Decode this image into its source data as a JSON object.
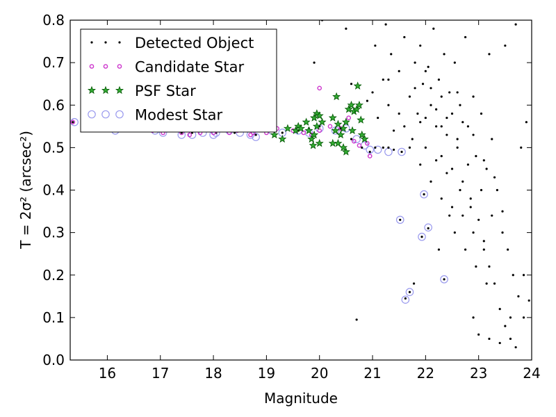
{
  "chart_data": {
    "type": "scatter",
    "xlabel": "Magnitude",
    "ylabel": "T = 2σ² (arcsec²)",
    "xlim": [
      15.3,
      24.0
    ],
    "ylim": [
      0.0,
      0.8
    ],
    "xticks": [
      "16",
      "17",
      "18",
      "19",
      "20",
      "21",
      "22",
      "23",
      "24"
    ],
    "yticks": [
      "0.0",
      "0.1",
      "0.2",
      "0.3",
      "0.4",
      "0.5",
      "0.6",
      "0.7",
      "0.8"
    ],
    "grid": false,
    "legend_position": "top-left",
    "series": [
      {
        "name": "Detected Object",
        "marker": "dot",
        "color": "#000000",
        "points": [
          [
            15.35,
            0.56
          ],
          [
            15.6,
            0.55
          ],
          [
            16.2,
            0.545
          ],
          [
            16.9,
            0.54
          ],
          [
            17.1,
            0.54
          ],
          [
            17.4,
            0.535
          ],
          [
            17.6,
            0.535
          ],
          [
            18.05,
            0.535
          ],
          [
            18.4,
            0.535
          ],
          [
            18.8,
            0.53
          ],
          [
            19.0,
            0.54
          ],
          [
            19.3,
            0.535
          ],
          [
            19.6,
            0.54
          ],
          [
            19.8,
            0.545
          ],
          [
            20.0,
            0.55
          ],
          [
            20.4,
            0.545
          ],
          [
            20.6,
            0.52
          ],
          [
            20.8,
            0.5
          ],
          [
            20.95,
            0.49
          ],
          [
            21.05,
            0.5
          ],
          [
            21.2,
            0.5
          ],
          [
            21.3,
            0.5
          ],
          [
            21.4,
            0.495
          ],
          [
            21.55,
            0.49
          ],
          [
            21.52,
            0.33
          ],
          [
            21.62,
            0.145
          ],
          [
            21.7,
            0.16
          ],
          [
            21.78,
            0.18
          ],
          [
            21.93,
            0.29
          ],
          [
            21.97,
            0.39
          ],
          [
            22.05,
            0.31
          ],
          [
            22.35,
            0.19
          ],
          [
            20.7,
            0.095
          ],
          [
            22.25,
            0.26
          ],
          [
            20.9,
            0.61
          ],
          [
            21.0,
            0.63
          ],
          [
            21.1,
            0.57
          ],
          [
            21.2,
            0.66
          ],
          [
            21.3,
            0.6
          ],
          [
            21.35,
            0.72
          ],
          [
            21.4,
            0.54
          ],
          [
            21.5,
            0.68
          ],
          [
            21.6,
            0.76
          ],
          [
            21.7,
            0.62
          ],
          [
            21.75,
            0.52
          ],
          [
            21.8,
            0.7
          ],
          [
            21.85,
            0.58
          ],
          [
            21.9,
            0.74
          ],
          [
            21.95,
            0.65
          ],
          [
            22.0,
            0.5
          ],
          [
            22.05,
            0.69
          ],
          [
            22.1,
            0.6
          ],
          [
            22.15,
            0.78
          ],
          [
            22.2,
            0.55
          ],
          [
            22.25,
            0.66
          ],
          [
            22.3,
            0.48
          ],
          [
            22.35,
            0.72
          ],
          [
            22.4,
            0.57
          ],
          [
            22.45,
            0.63
          ],
          [
            22.5,
            0.45
          ],
          [
            22.55,
            0.7
          ],
          [
            22.6,
            0.52
          ],
          [
            22.65,
            0.6
          ],
          [
            22.7,
            0.42
          ],
          [
            22.75,
            0.76
          ],
          [
            22.8,
            0.55
          ],
          [
            22.85,
            0.38
          ],
          [
            22.9,
            0.62
          ],
          [
            22.95,
            0.48
          ],
          [
            23.0,
            0.33
          ],
          [
            23.05,
            0.58
          ],
          [
            23.1,
            0.28
          ],
          [
            23.15,
            0.45
          ],
          [
            23.2,
            0.22
          ],
          [
            23.25,
            0.52
          ],
          [
            23.3,
            0.18
          ],
          [
            23.35,
            0.4
          ],
          [
            23.4,
            0.12
          ],
          [
            23.45,
            0.35
          ],
          [
            23.5,
            0.08
          ],
          [
            23.55,
            0.26
          ],
          [
            23.6,
            0.05
          ],
          [
            23.65,
            0.2
          ],
          [
            23.7,
            0.03
          ],
          [
            23.75,
            0.15
          ],
          [
            23.8,
            0.5
          ],
          [
            23.85,
            0.1
          ],
          [
            23.9,
            0.56
          ],
          [
            23.95,
            0.14
          ],
          [
            23.0,
            0.06
          ],
          [
            23.2,
            0.05
          ],
          [
            23.4,
            0.04
          ],
          [
            23.6,
            0.1
          ],
          [
            22.9,
            0.1
          ],
          [
            22.0,
            0.57
          ],
          [
            22.1,
            0.64
          ],
          [
            22.2,
            0.59
          ],
          [
            22.3,
            0.62
          ],
          [
            22.4,
            0.53
          ],
          [
            22.5,
            0.58
          ],
          [
            22.6,
            0.5
          ],
          [
            22.7,
            0.56
          ],
          [
            22.2,
            0.47
          ],
          [
            22.4,
            0.44
          ],
          [
            21.6,
            0.55
          ],
          [
            21.8,
            0.64
          ],
          [
            21.9,
            0.56
          ],
          [
            22.0,
            0.68
          ],
          [
            22.3,
            0.55
          ],
          [
            22.6,
            0.63
          ],
          [
            22.8,
            0.46
          ],
          [
            22.9,
            0.53
          ],
          [
            23.1,
            0.47
          ],
          [
            23.3,
            0.43
          ],
          [
            21.3,
            0.66
          ],
          [
            21.5,
            0.58
          ],
          [
            21.7,
            0.5
          ],
          [
            21.9,
            0.46
          ],
          [
            22.1,
            0.42
          ],
          [
            22.3,
            0.38
          ],
          [
            22.5,
            0.36
          ],
          [
            22.7,
            0.34
          ],
          [
            22.9,
            0.3
          ],
          [
            23.1,
            0.26
          ],
          [
            20.05,
            0.8
          ],
          [
            20.5,
            0.78
          ],
          [
            19.9,
            0.7
          ],
          [
            20.6,
            0.65
          ],
          [
            21.05,
            0.74
          ],
          [
            21.25,
            0.79
          ],
          [
            23.2,
            0.72
          ],
          [
            23.5,
            0.74
          ],
          [
            23.7,
            0.79
          ],
          [
            23.85,
            0.2
          ],
          [
            22.55,
            0.3
          ],
          [
            22.75,
            0.26
          ],
          [
            22.95,
            0.22
          ],
          [
            23.15,
            0.18
          ],
          [
            22.45,
            0.34
          ],
          [
            22.65,
            0.4
          ],
          [
            22.85,
            0.36
          ],
          [
            23.05,
            0.4
          ],
          [
            23.25,
            0.34
          ],
          [
            23.45,
            0.3
          ]
        ]
      },
      {
        "name": "Candidate Star",
        "marker": "open-circle-small",
        "color": "#cc33cc",
        "points": [
          [
            15.35,
            0.56
          ],
          [
            16.2,
            0.545
          ],
          [
            16.85,
            0.54
          ],
          [
            17.05,
            0.535
          ],
          [
            17.4,
            0.535
          ],
          [
            17.55,
            0.53
          ],
          [
            17.75,
            0.535
          ],
          [
            18.0,
            0.535
          ],
          [
            18.05,
            0.54
          ],
          [
            18.3,
            0.535
          ],
          [
            18.45,
            0.54
          ],
          [
            18.7,
            0.53
          ],
          [
            18.75,
            0.535
          ],
          [
            19.0,
            0.535
          ],
          [
            19.2,
            0.545
          ],
          [
            19.5,
            0.54
          ],
          [
            19.7,
            0.535
          ],
          [
            19.85,
            0.53
          ],
          [
            20.0,
            0.54
          ],
          [
            20.0,
            0.64
          ],
          [
            20.2,
            0.55
          ],
          [
            20.4,
            0.545
          ],
          [
            20.55,
            0.57
          ],
          [
            20.65,
            0.515
          ],
          [
            20.75,
            0.505
          ],
          [
            20.9,
            0.51
          ],
          [
            20.95,
            0.48
          ]
        ]
      },
      {
        "name": "PSF Star",
        "marker": "star",
        "color": "#33aa33",
        "points": [
          [
            19.15,
            0.53
          ],
          [
            19.3,
            0.52
          ],
          [
            19.4,
            0.545
          ],
          [
            19.55,
            0.54
          ],
          [
            19.6,
            0.55
          ],
          [
            19.65,
            0.545
          ],
          [
            19.75,
            0.56
          ],
          [
            19.8,
            0.54
          ],
          [
            19.85,
            0.52
          ],
          [
            19.88,
            0.505
          ],
          [
            19.9,
            0.57
          ],
          [
            19.95,
            0.58
          ],
          [
            20.0,
            0.575
          ],
          [
            20.05,
            0.56
          ],
          [
            19.95,
            0.55
          ],
          [
            20.25,
            0.57
          ],
          [
            20.3,
            0.54
          ],
          [
            20.32,
            0.62
          ],
          [
            20.35,
            0.555
          ],
          [
            20.4,
            0.53
          ],
          [
            20.45,
            0.545
          ],
          [
            20.5,
            0.56
          ],
          [
            20.55,
            0.59
          ],
          [
            20.6,
            0.6
          ],
          [
            20.62,
            0.54
          ],
          [
            20.65,
            0.585
          ],
          [
            20.7,
            0.59
          ],
          [
            20.72,
            0.645
          ],
          [
            20.75,
            0.6
          ],
          [
            20.78,
            0.565
          ],
          [
            20.8,
            0.53
          ],
          [
            20.85,
            0.52
          ],
          [
            20.45,
            0.5
          ],
          [
            20.5,
            0.49
          ],
          [
            20.35,
            0.51
          ],
          [
            20.25,
            0.51
          ],
          [
            20.0,
            0.51
          ],
          [
            19.9,
            0.53
          ]
        ]
      },
      {
        "name": "Modest Star",
        "marker": "open-circle-large",
        "color": "#9999ee",
        "points": [
          [
            15.38,
            0.56
          ],
          [
            15.6,
            0.555
          ],
          [
            15.9,
            0.575
          ],
          [
            16.15,
            0.54
          ],
          [
            16.9,
            0.54
          ],
          [
            17.05,
            0.535
          ],
          [
            17.4,
            0.53
          ],
          [
            17.6,
            0.53
          ],
          [
            17.8,
            0.535
          ],
          [
            18.0,
            0.53
          ],
          [
            18.05,
            0.535
          ],
          [
            18.3,
            0.54
          ],
          [
            18.5,
            0.535
          ],
          [
            18.7,
            0.53
          ],
          [
            18.8,
            0.525
          ],
          [
            19.1,
            0.54
          ],
          [
            19.3,
            0.535
          ],
          [
            19.6,
            0.54
          ],
          [
            19.8,
            0.535
          ],
          [
            20.0,
            0.545
          ],
          [
            20.3,
            0.54
          ],
          [
            20.5,
            0.545
          ],
          [
            20.7,
            0.52
          ],
          [
            20.85,
            0.505
          ],
          [
            20.95,
            0.495
          ],
          [
            21.1,
            0.495
          ],
          [
            21.3,
            0.49
          ],
          [
            21.55,
            0.49
          ],
          [
            21.52,
            0.33
          ],
          [
            21.62,
            0.142
          ],
          [
            21.7,
            0.16
          ],
          [
            21.93,
            0.29
          ],
          [
            21.97,
            0.39
          ],
          [
            22.05,
            0.312
          ],
          [
            22.35,
            0.19
          ]
        ]
      }
    ]
  }
}
